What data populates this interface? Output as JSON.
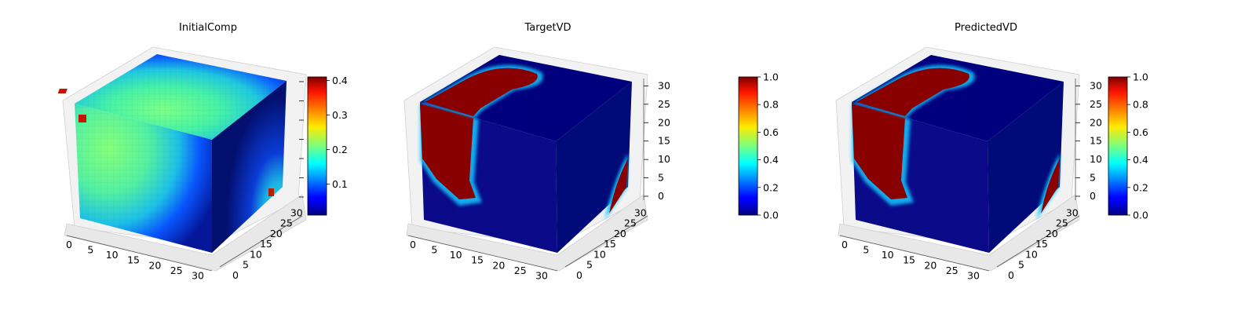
{
  "chart_data": [
    {
      "type": "heatmap",
      "subtype": "3d-voxel-cube",
      "title": "InitialComp",
      "x_ticks": [
        "0",
        "5",
        "10",
        "15",
        "20",
        "25",
        "30"
      ],
      "y_ticks": [
        "0",
        "5",
        "10",
        "15",
        "20",
        "25",
        "30"
      ],
      "z_ticks": [],
      "xlim": [
        0,
        32
      ],
      "ylim": [
        0,
        32
      ],
      "zlim": [
        0,
        32
      ],
      "colormap": "jet",
      "colorbar": {
        "min": 0.01,
        "max": 0.41,
        "ticks": [
          "0.1",
          "0.2",
          "0.3",
          "0.4"
        ],
        "tick_values": [
          0.1,
          0.2,
          0.3,
          0.4
        ]
      }
    },
    {
      "type": "heatmap",
      "subtype": "3d-voxel-cube",
      "title": "TargetVD",
      "x_ticks": [
        "0",
        "5",
        "10",
        "15",
        "20",
        "25",
        "30"
      ],
      "y_ticks": [
        "0",
        "5",
        "10",
        "15",
        "20",
        "25",
        "30"
      ],
      "z_ticks": [
        "0",
        "5",
        "10",
        "15",
        "20",
        "25",
        "30"
      ],
      "xlim": [
        0,
        32
      ],
      "ylim": [
        0,
        32
      ],
      "zlim": [
        0,
        32
      ],
      "colormap": "jet",
      "colorbar": {
        "min": 0.0,
        "max": 1.0,
        "ticks": [
          "0.0",
          "0.2",
          "0.4",
          "0.6",
          "0.8",
          "1.0"
        ],
        "tick_values": [
          0,
          0.2,
          0.4,
          0.6,
          0.8,
          1.0
        ]
      }
    },
    {
      "type": "heatmap",
      "subtype": "3d-voxel-cube",
      "title": "PredictedVD",
      "x_ticks": [
        "0",
        "5",
        "10",
        "15",
        "20",
        "25",
        "30"
      ],
      "y_ticks": [
        "0",
        "5",
        "10",
        "15",
        "20",
        "25",
        "30"
      ],
      "z_ticks": [
        "0",
        "5",
        "10",
        "15",
        "20",
        "25",
        "30"
      ],
      "xlim": [
        0,
        32
      ],
      "ylim": [
        0,
        32
      ],
      "zlim": [
        0,
        32
      ],
      "colormap": "jet",
      "colorbar": {
        "min": 0.0,
        "max": 1.0,
        "ticks": [
          "0.0",
          "0.2",
          "0.4",
          "0.6",
          "0.8",
          "1.0"
        ],
        "tick_values": [
          0,
          0.2,
          0.4,
          0.6,
          0.8,
          1.0
        ]
      }
    }
  ]
}
